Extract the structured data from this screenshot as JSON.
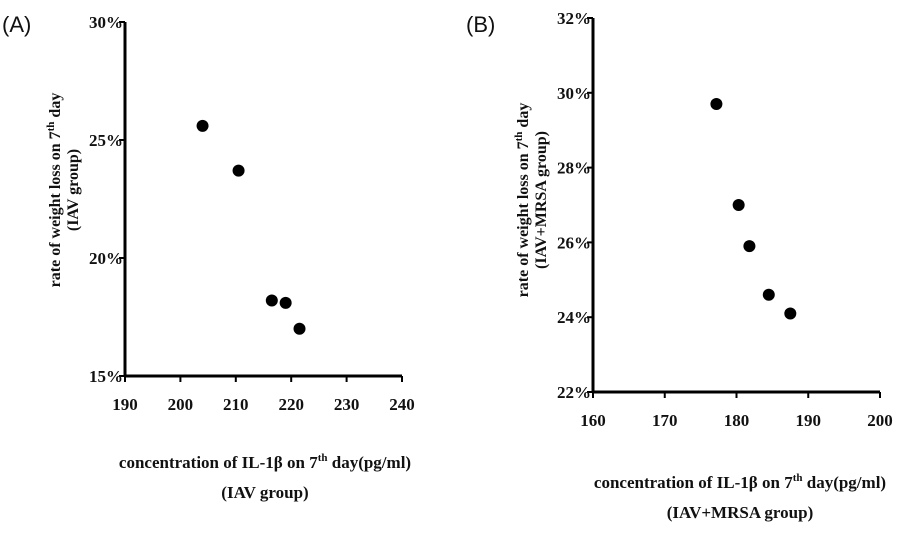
{
  "chart_data": [
    {
      "panel_label": "(A)",
      "type": "scatter",
      "points": [
        {
          "x": 204,
          "y": 25.6
        },
        {
          "x": 210.5,
          "y": 23.7
        },
        {
          "x": 216.5,
          "y": 18.2
        },
        {
          "x": 219,
          "y": 18.1
        },
        {
          "x": 221.5,
          "y": 17.0
        }
      ],
      "xlim": [
        190,
        240
      ],
      "ylim": [
        15,
        30
      ],
      "xticks": [
        "190",
        "200",
        "210",
        "220",
        "230",
        "240"
      ],
      "yticks": [
        "15%",
        "20%",
        "25%",
        "30%"
      ],
      "xlabel": {
        "line1_pre": "concentration of IL-1β on 7",
        "line1_sup": "th",
        "line1_post": " day(pg/ml)",
        "line2": "(IAV group)"
      },
      "ylabel": {
        "line1_pre": "rate of weight loss on 7",
        "line1_sup": "th",
        "line1_post": " day",
        "line2": "(IAV group)"
      },
      "grid": false,
      "legend": "none"
    },
    {
      "panel_label": "(B)",
      "type": "scatter",
      "points": [
        {
          "x": 177.2,
          "y": 29.7
        },
        {
          "x": 180.3,
          "y": 27.0
        },
        {
          "x": 181.8,
          "y": 25.9
        },
        {
          "x": 184.5,
          "y": 24.6
        },
        {
          "x": 187.5,
          "y": 24.1
        }
      ],
      "xlim": [
        160,
        200
      ],
      "ylim": [
        22,
        32
      ],
      "xticks": [
        "160",
        "170",
        "180",
        "190",
        "200"
      ],
      "yticks": [
        "22%",
        "24%",
        "26%",
        "28%",
        "30%",
        "32%"
      ],
      "xlabel": {
        "line1_pre": "concentration of IL-1β on 7",
        "line1_sup": "th",
        "line1_post": " day(pg/ml)",
        "line2": "(IAV+MRSA group)"
      },
      "ylabel": {
        "line1_pre": "rate of weight loss on 7",
        "line1_sup": "th",
        "line1_post": " day",
        "line2": "(IAV+MRSA group)"
      },
      "grid": false,
      "legend": "none"
    }
  ]
}
